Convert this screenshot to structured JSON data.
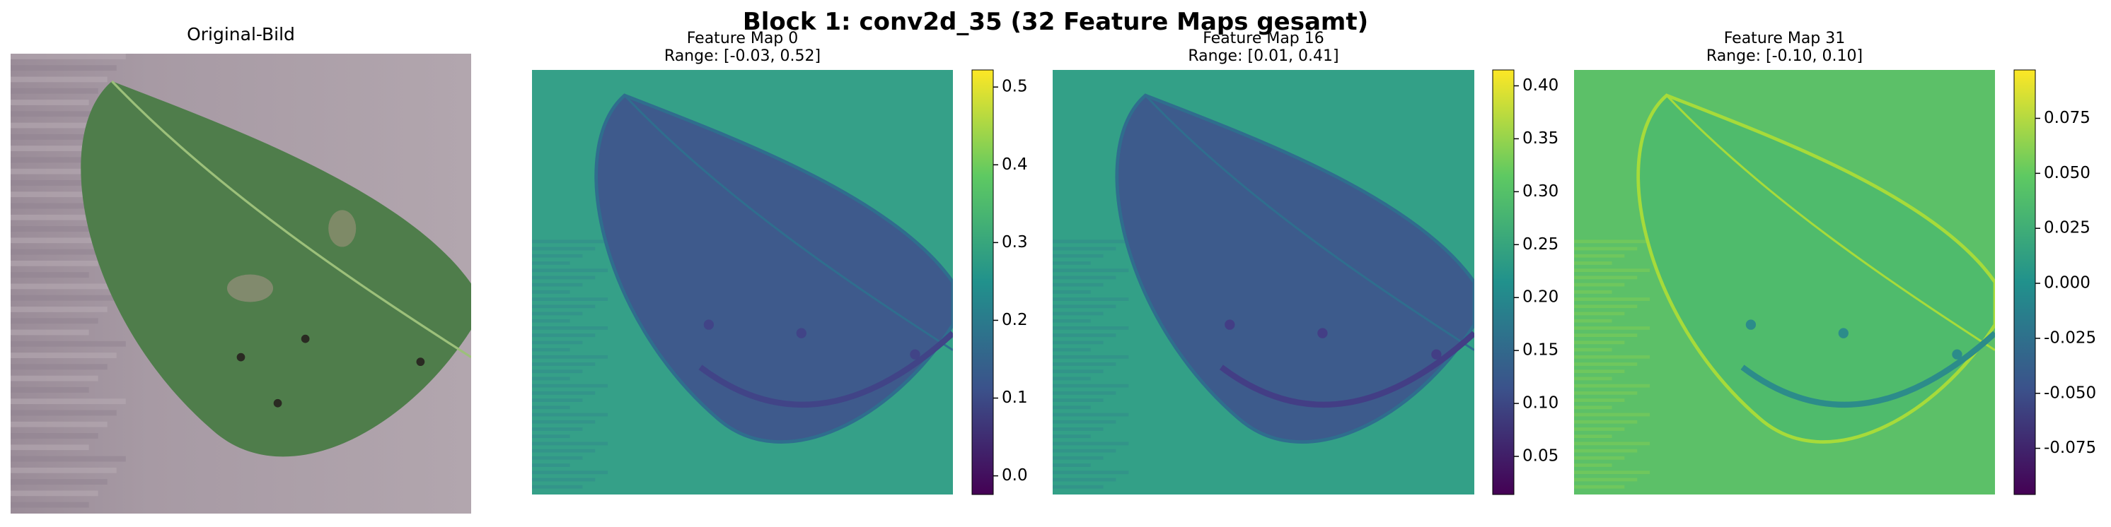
{
  "figure_title": "Block 1: conv2d_35 (32 Feature Maps gesamt)",
  "chart_data": [
    {
      "type": "image",
      "title": "Original-Bild"
    },
    {
      "type": "heatmap",
      "title": "Feature Map 0",
      "subtitle": "Range: [-0.03, 0.52]",
      "colormap": [
        "#440154",
        "#3b528b",
        "#21918c",
        "#5ec962",
        "#fde725"
      ],
      "clim": [
        -0.024,
        0.522
      ],
      "cticks": [
        {
          "value": 0,
          "label": "0.0"
        },
        0.1,
        0.2,
        0.3,
        0.4,
        0.5
      ]
    },
    {
      "type": "heatmap",
      "title": "Feature Map 16",
      "subtitle": "Range: [0.01, 0.41]",
      "colormap": [
        "#440154",
        "#3b528b",
        "#21918c",
        "#5ec962",
        "#fde725"
      ],
      "clim": [
        0.014,
        0.415
      ],
      "cticks": [
        0.05,
        {
          "value": 0.1,
          "label": "0.10"
        },
        0.15,
        {
          "value": 0.2,
          "label": "0.20"
        },
        0.25,
        {
          "value": 0.3,
          "label": "0.30"
        },
        0.35,
        {
          "value": 0.4,
          "label": "0.40"
        }
      ]
    },
    {
      "type": "heatmap",
      "title": "Feature Map 31",
      "subtitle": "Range: [-0.10, 0.10]",
      "colormap": [
        "#440154",
        "#3b528b",
        "#21918c",
        "#5ec962",
        "#fde725"
      ],
      "clim": [
        -0.096,
        0.097
      ],
      "cticks": [
        -0.075,
        {
          "value": -0.05,
          "label": "-0.050"
        },
        -0.025,
        {
          "value": 0,
          "label": "0.000"
        },
        0.025,
        {
          "value": 0.05,
          "label": "0.050"
        },
        0.075
      ]
    }
  ]
}
